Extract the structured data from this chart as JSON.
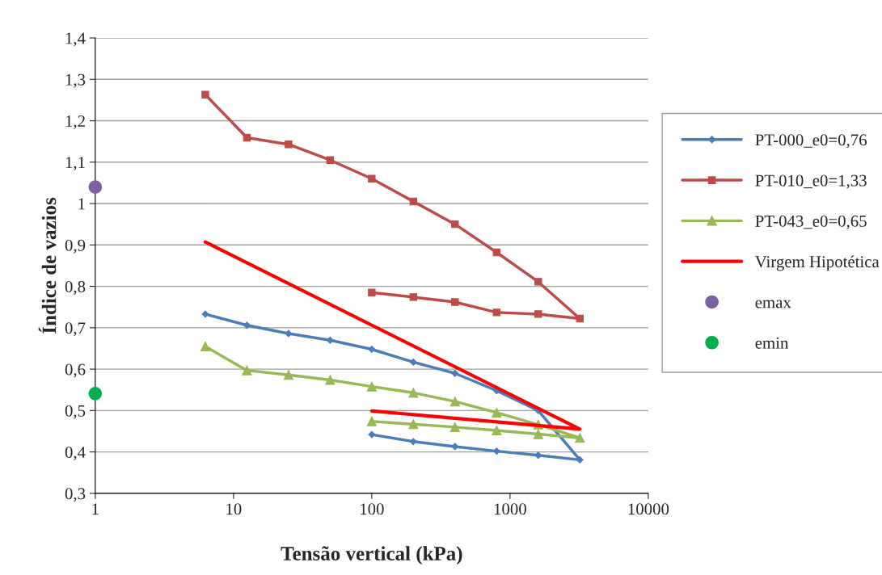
{
  "chart_data": {
    "type": "line",
    "xlabel": "Tensão vertical (kPa)",
    "ylabel": "Índice de vazios",
    "log": "x",
    "xlim": [
      1,
      10000
    ],
    "xticks": [
      1,
      10,
      100,
      1000,
      10000
    ],
    "ylim": [
      0.3,
      1.4
    ],
    "yticks": [
      {
        "value": 0.3,
        "label": "0,3"
      },
      {
        "value": 0.4,
        "label": "0,4"
      },
      {
        "value": 0.5,
        "label": "0,5"
      },
      {
        "value": 0.6,
        "label": "0,6"
      },
      {
        "value": 0.7,
        "label": "0,7"
      },
      {
        "value": 0.8,
        "label": "0,8"
      },
      {
        "value": 0.9,
        "label": "0,9"
      },
      {
        "value": 1.0,
        "label": "1"
      },
      {
        "value": 1.1,
        "label": "1,1"
      },
      {
        "value": 1.2,
        "label": "1,2"
      },
      {
        "value": 1.3,
        "label": "1,3"
      },
      {
        "value": 1.4,
        "label": "1,4"
      }
    ],
    "grid": "y",
    "legend": "right",
    "line_style": "solid",
    "series": [
      {
        "name": "PT-000_e0=0,76",
        "color": "#4a7ebb",
        "marker": "diamond",
        "x": [
          6.25,
          12.5,
          25,
          50,
          100,
          200,
          400,
          800,
          1600,
          3200,
          1600,
          800,
          400,
          200,
          100
        ],
        "values": [
          0.733,
          0.706,
          0.686,
          0.67,
          0.648,
          0.617,
          0.59,
          0.548,
          0.5,
          0.381,
          0.392,
          0.402,
          0.413,
          0.425,
          0.442
        ]
      },
      {
        "name": "PT-010_e0=1,33",
        "color": "#be4b48",
        "marker": "square",
        "x": [
          6.25,
          12.5,
          25,
          50,
          100,
          200,
          400,
          800,
          1600,
          3200,
          1600,
          800,
          400,
          200,
          100
        ],
        "values": [
          1.263,
          1.159,
          1.143,
          1.105,
          1.06,
          1.005,
          0.95,
          0.882,
          0.811,
          0.722,
          0.733,
          0.737,
          0.762,
          0.774,
          0.785
        ]
      },
      {
        "name": "PT-043_e0=0,65",
        "color": "#98b954",
        "marker": "triangle",
        "x": [
          6.25,
          12.5,
          25,
          50,
          100,
          200,
          400,
          800,
          1600,
          3200,
          1600,
          800,
          400,
          200,
          100
        ],
        "values": [
          0.655,
          0.597,
          0.586,
          0.574,
          0.558,
          0.543,
          0.522,
          0.495,
          0.466,
          0.434,
          0.443,
          0.452,
          0.46,
          0.467,
          0.474
        ]
      },
      {
        "name": "Virgem Hipotética",
        "color": "#ff0000",
        "marker": "none",
        "x": [
          6.25,
          3200,
          100
        ],
        "values": [
          0.907,
          0.455,
          0.499
        ]
      },
      {
        "name": "emax",
        "type": "scatter",
        "color": "#7d60a0",
        "marker": "circle",
        "x": [
          1
        ],
        "values": [
          1.04
        ]
      },
      {
        "name": "emin",
        "type": "scatter",
        "color": "#00b050",
        "marker": "circle",
        "x": [
          1
        ],
        "values": [
          0.541
        ]
      }
    ]
  }
}
